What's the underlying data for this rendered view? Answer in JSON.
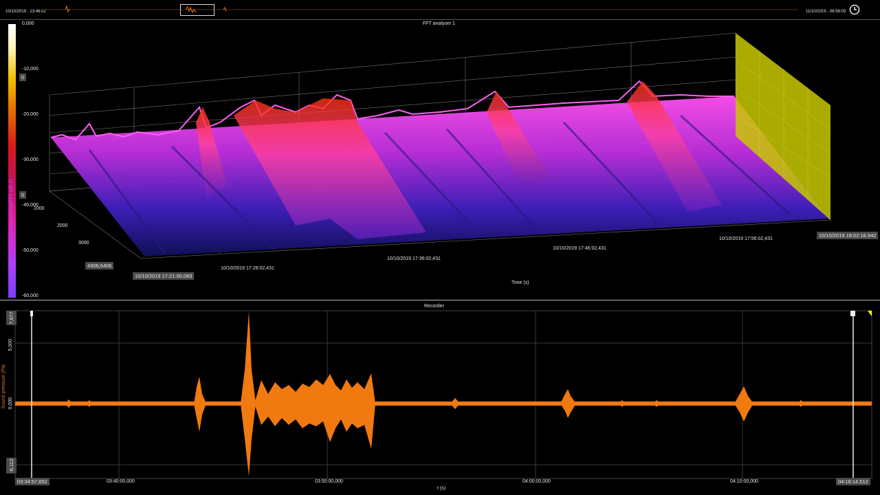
{
  "overview": {
    "start_time": "10/10/2019 - 13:46:02",
    "end_time": "11/10/2019 - 06:58:03",
    "clock_icon": "clock-icon"
  },
  "fft": {
    "title": "FFT analyser 1",
    "colorbar_label": "Sound pressure/AmplFFT (dB Z)",
    "colorbar_ticks": [
      "0,000",
      "-10,000",
      "-20,000",
      "-30,000",
      "-40,000",
      "-50,000",
      "-60,000"
    ],
    "colorbar_box_top": "0",
    "colorbar_box_bottom": "0",
    "freq_ticks": [
      "1000",
      "2000",
      "3000"
    ],
    "freq_box": "4306,6406",
    "time_start_box": "10/10/2019 17:21:00,083",
    "time_end_box": "10/10/2019 18:02:16,942",
    "time_ticks": [
      "10/10/2019 17:26:02,431",
      "10/10/2019 17:36:02,431",
      "10/10/2019 17:46:02,431",
      "10/10/2019 17:56:02,431"
    ],
    "time_axis_label": "Time (s)",
    "colors": {
      "surface_low": "#1a1a8a",
      "surface_mid": "#ff40e0",
      "surface_high": "#ff4000",
      "wall": "#c8c800"
    }
  },
  "recorder": {
    "title": "Recorder",
    "y_label": "Sound pressure (Pa)",
    "y_max_box": "7,677",
    "y_min_box": "-6,112",
    "y_ticks": [
      "5,000",
      "0,000"
    ],
    "x_start_box": "03:34:57,652",
    "x_end_box": "04:16:14,512",
    "x_ticks": [
      "03:40:00,000",
      "03:50:00,000",
      "04:00:00,000",
      "04:10:00,000"
    ],
    "x_label": "t (s)",
    "waveform_color": "#f07a10"
  }
}
